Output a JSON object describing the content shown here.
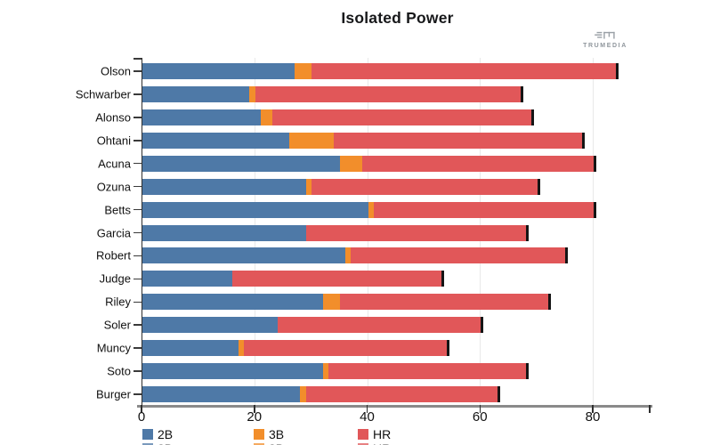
{
  "title": "Isolated Power",
  "logo": {
    "text": "TRUMEDIA",
    "color": "#8f969c"
  },
  "chart_data": {
    "type": "bar",
    "orientation": "horizontal",
    "stacked": true,
    "title": "Isolated Power",
    "categories": [
      "Olson",
      "Schwarber",
      "Alonso",
      "Ohtani",
      "Acuna",
      "Ozuna",
      "Betts",
      "Garcia",
      "Robert",
      "Judge",
      "Riley",
      "Soler",
      "Muncy",
      "Soto",
      "Burger"
    ],
    "series": [
      {
        "name": "2B",
        "color": "#4E79A7",
        "values": [
          27,
          19,
          21,
          26,
          35,
          29,
          40,
          29,
          36,
          16,
          32,
          24,
          17,
          32,
          28
        ]
      },
      {
        "name": "3B",
        "color": "#F28E2B",
        "values": [
          3,
          1,
          2,
          8,
          4,
          1,
          1,
          0,
          1,
          0,
          3,
          0,
          1,
          1,
          1
        ]
      },
      {
        "name": "HR",
        "color": "#E15759",
        "values": [
          54,
          47,
          46,
          44,
          41,
          40,
          39,
          39,
          38,
          37,
          37,
          36,
          36,
          35,
          34
        ]
      }
    ],
    "bar_endcap_color": "#151515",
    "xlabel": "",
    "ylabel": "",
    "xlim": [
      0,
      90
    ],
    "xticks": [
      0,
      20,
      40,
      60,
      80
    ],
    "grid": true,
    "legend_position": "bottom-left"
  },
  "legend": {
    "items": [
      {
        "label": "2B",
        "color": "#4E79A7"
      },
      {
        "label": "3B",
        "color": "#F28E2B"
      },
      {
        "label": "HR",
        "color": "#E15759"
      }
    ]
  }
}
